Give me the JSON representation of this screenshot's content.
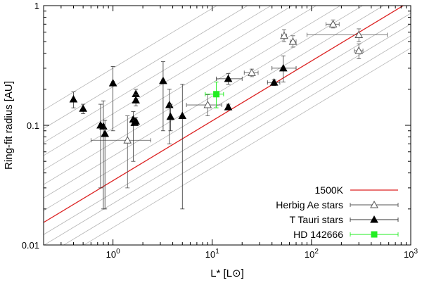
{
  "chart_data": {
    "type": "scatter",
    "title": "",
    "xlabel": "L* [L⊙]",
    "ylabel": "Ring-fit radius [AU]",
    "xscale": "log",
    "yscale": "log",
    "xlim": [
      0.2,
      1000
    ],
    "ylim": [
      0.01,
      1
    ],
    "xticks": [
      {
        "value": 1,
        "base": "10",
        "exp": "0"
      },
      {
        "value": 10,
        "base": "10",
        "exp": "1"
      },
      {
        "value": 100,
        "base": "10",
        "exp": "2"
      },
      {
        "value": 1000,
        "base": "10",
        "exp": "3"
      }
    ],
    "yticks": [
      {
        "value": 0.01,
        "label": "0.01"
      },
      {
        "value": 0.1,
        "label": "0.1"
      },
      {
        "value": 1,
        "label": "1"
      }
    ],
    "legend_position": "bottom-right",
    "reference_line": {
      "name": "1500K",
      "color": "#dd2222",
      "relation": "R = 0.0345 * L^0.5",
      "coefficient": 0.0345
    },
    "gray_lines": {
      "color": "#b4b4b4",
      "relation": "R = c * L^0.5",
      "coefficients": [
        0.014,
        0.0177,
        0.0222,
        0.0273,
        0.0345,
        0.0434,
        0.0553,
        0.0716,
        0.0947,
        0.125,
        0.16,
        0.21,
        0.3
      ]
    },
    "series": [
      {
        "name": "Herbig Ae stars",
        "marker": "open-triangle",
        "color": "#555555",
        "points": [
          {
            "x": 1.4,
            "y": 0.075,
            "xerr": [
              0.6,
              2.4
            ],
            "yerr": [
              0.03,
              0.12
            ]
          },
          {
            "x": 9,
            "y": 0.148,
            "xerr": [
              5.5,
              12.5
            ],
            "yerr": [
              0.12,
              0.18
            ]
          },
          {
            "x": 25,
            "y": 0.275,
            "xerr": [
              21,
              29
            ],
            "yerr": [
              0.255,
              0.295
            ]
          },
          {
            "x": 53,
            "y": 0.56,
            "xerr": [
              50,
              56
            ],
            "yerr": [
              0.5,
              0.63
            ]
          },
          {
            "x": 65,
            "y": 0.5,
            "xerr": [
              61,
              70
            ],
            "yerr": [
              0.45,
              0.56
            ]
          },
          {
            "x": 165,
            "y": 0.7,
            "xerr": [
              140,
              190
            ],
            "yerr": [
              0.65,
              0.76
            ]
          },
          {
            "x": 300,
            "y": 0.57,
            "xerr": [
              90,
              580
            ],
            "yerr": [
              0.5,
              0.64
            ]
          },
          {
            "x": 300,
            "y": 0.42,
            "xerr": [
              270,
              330
            ],
            "yerr": [
              0.36,
              0.48
            ]
          }
        ]
      },
      {
        "name": "T Tauri stars",
        "marker": "filled-triangle",
        "color": "#000000",
        "points": [
          {
            "x": 0.4,
            "y": 0.165,
            "xerr": [
              0.39,
              0.41
            ],
            "yerr": [
              0.14,
              0.19
            ]
          },
          {
            "x": 0.5,
            "y": 0.138,
            "xerr": [
              0.49,
              0.51
            ],
            "yerr": [
              0.125,
              0.15
            ]
          },
          {
            "x": 0.75,
            "y": 0.1,
            "xerr": [
              0.73,
              0.77
            ],
            "yerr": [
              0.03,
              0.15
            ]
          },
          {
            "x": 0.8,
            "y": 0.098,
            "xerr": [
              0.78,
              0.82
            ],
            "yerr": [
              0.02,
              0.16
            ]
          },
          {
            "x": 0.83,
            "y": 0.085,
            "xerr": [
              0.81,
              0.85
            ],
            "yerr": [
              0.02,
              0.11
            ]
          },
          {
            "x": 1.0,
            "y": 0.225,
            "xerr": [
              0.97,
              1.03
            ],
            "yerr": [
              0.09,
              0.31
            ]
          },
          {
            "x": 1.6,
            "y": 0.112,
            "xerr": [
              1.55,
              1.65
            ],
            "yerr": [
              0.05,
              0.13
            ]
          },
          {
            "x": 1.65,
            "y": 0.105,
            "xerr": [
              1.6,
              1.7
            ],
            "yerr": [
              0.1,
              0.11
            ]
          },
          {
            "x": 1.7,
            "y": 0.108,
            "xerr": [
              1.65,
              1.75
            ],
            "yerr": [
              0.1,
              0.116
            ]
          },
          {
            "x": 1.7,
            "y": 0.183,
            "xerr": [
              1.65,
              1.75
            ],
            "yerr": [
              0.165,
              0.2
            ]
          },
          {
            "x": 1.7,
            "y": 0.162,
            "xerr": [
              1.65,
              1.75
            ],
            "yerr": [
              0.145,
              0.18
            ]
          },
          {
            "x": 3.2,
            "y": 0.235,
            "xerr": [
              3.1,
              3.3
            ],
            "yerr": [
              0.09,
              0.34
            ]
          },
          {
            "x": 3.7,
            "y": 0.148,
            "xerr": [
              3.6,
              3.8
            ],
            "yerr": [
              0.07,
              0.2
            ]
          },
          {
            "x": 3.8,
            "y": 0.118,
            "xerr": [
              3.7,
              3.9
            ],
            "yerr": [
              0.09,
              0.15
            ]
          },
          {
            "x": 5.0,
            "y": 0.12,
            "xerr": [
              4.9,
              5.1
            ],
            "yerr": [
              0.02,
              0.22
            ]
          },
          {
            "x": 14.5,
            "y": 0.245,
            "xerr": [
              11,
              20
            ],
            "yerr": [
              0.22,
              0.27
            ]
          },
          {
            "x": 14.5,
            "y": 0.142,
            "xerr": [
              14,
              15
            ],
            "yerr": [
              0.135,
              0.15
            ]
          },
          {
            "x": 42,
            "y": 0.228,
            "xerr": [
              36,
              48
            ],
            "yerr": [
              0.215,
              0.24
            ]
          },
          {
            "x": 52,
            "y": 0.3,
            "xerr": [
              40,
              70
            ],
            "yerr": [
              0.23,
              0.38
            ]
          }
        ]
      },
      {
        "name": "HD 142666",
        "marker": "filled-square",
        "color": "#22ee22",
        "points": [
          {
            "x": 11,
            "y": 0.182,
            "xerr": [
              8.5,
              13
            ],
            "yerr": [
              0.14,
              0.23
            ]
          }
        ]
      }
    ]
  }
}
